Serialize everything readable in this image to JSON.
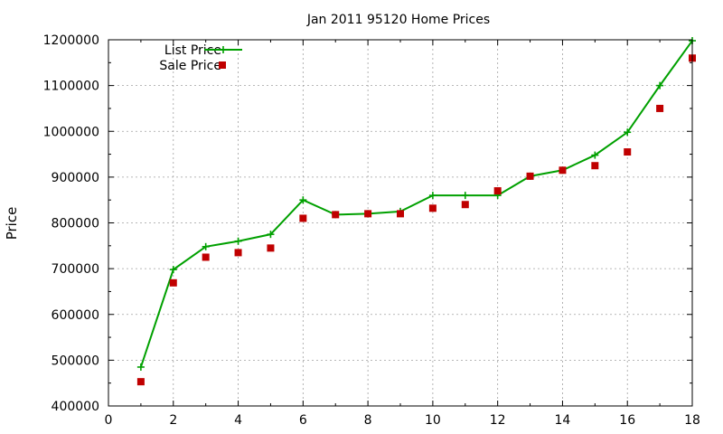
{
  "chart_data": {
    "type": "line",
    "title": "Jan 2011 95120 Home Prices",
    "xlabel": "",
    "ylabel": "Price",
    "xlim": [
      0,
      18
    ],
    "ylim": [
      400000,
      1200000
    ],
    "xticks": [
      0,
      2,
      4,
      6,
      8,
      10,
      12,
      14,
      16,
      18
    ],
    "yticks": [
      400000,
      500000,
      600000,
      700000,
      800000,
      900000,
      1000000,
      1100000,
      1200000
    ],
    "grid": true,
    "legend_position": "top-left",
    "x": [
      1,
      2,
      3,
      4,
      5,
      6,
      7,
      8,
      9,
      10,
      11,
      12,
      13,
      14,
      15,
      16,
      17,
      18
    ],
    "series": [
      {
        "name": "List Price",
        "style": "linespoints",
        "marker": "plus",
        "color": "#00a000",
        "values": [
          485000,
          698000,
          748000,
          760000,
          775000,
          850000,
          818000,
          820000,
          825000,
          860000,
          860000,
          860000,
          902000,
          915000,
          948000,
          998000,
          1100000,
          1198000
        ]
      },
      {
        "name": "Sale Price",
        "style": "points",
        "marker": "square",
        "color": "#c00000",
        "values": [
          453000,
          669000,
          725000,
          735000,
          745000,
          810000,
          818000,
          820000,
          820000,
          832000,
          840000,
          870000,
          902000,
          915000,
          925000,
          955000,
          1050000,
          1160000
        ]
      }
    ]
  }
}
